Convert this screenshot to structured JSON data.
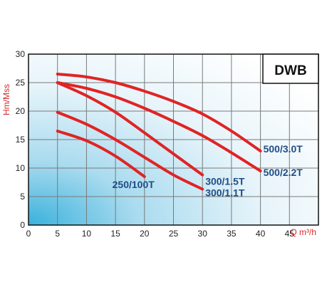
{
  "chart_data": {
    "type": "line",
    "title": "DWB",
    "xlabel": "Q m³/h",
    "ylabel": "Hm/Mss",
    "xlim": [
      0,
      50
    ],
    "ylim": [
      0,
      30
    ],
    "x_ticks": [
      "0",
      "5",
      "10",
      "15",
      "20",
      "25",
      "30",
      "35",
      "40",
      "45"
    ],
    "y_ticks": [
      "0",
      "5",
      "10",
      "15",
      "20",
      "25",
      "30"
    ],
    "grid": true,
    "series": [
      {
        "name": "500/3.0T",
        "x": [
          5,
          10,
          15,
          20,
          25,
          30,
          35,
          40
        ],
        "y": [
          26.5,
          26,
          25,
          23.5,
          21.7,
          19.5,
          16.5,
          13
        ]
      },
      {
        "name": "500/2.2T",
        "x": [
          5,
          10,
          15,
          20,
          25,
          30,
          35,
          40
        ],
        "y": [
          25,
          24,
          22.5,
          20.5,
          18.2,
          15.7,
          12.7,
          9.5
        ]
      },
      {
        "name": "300/1.5T",
        "x": [
          5,
          10,
          15,
          20,
          25,
          30
        ],
        "y": [
          25,
          22.7,
          19.8,
          16.2,
          12.5,
          8.8
        ]
      },
      {
        "name": "300/1.1T",
        "x": [
          5,
          10,
          15,
          20,
          25,
          30
        ],
        "y": [
          19.8,
          17.7,
          15,
          11.9,
          8.8,
          6.3
        ]
      },
      {
        "name": "250/100T",
        "x": [
          5,
          10,
          15,
          20
        ],
        "y": [
          16.5,
          14.8,
          12.1,
          8.5
        ]
      }
    ],
    "line_color": "#e02424",
    "label_color": "#1f4c86",
    "axis_label_color": "#d42a2a"
  }
}
